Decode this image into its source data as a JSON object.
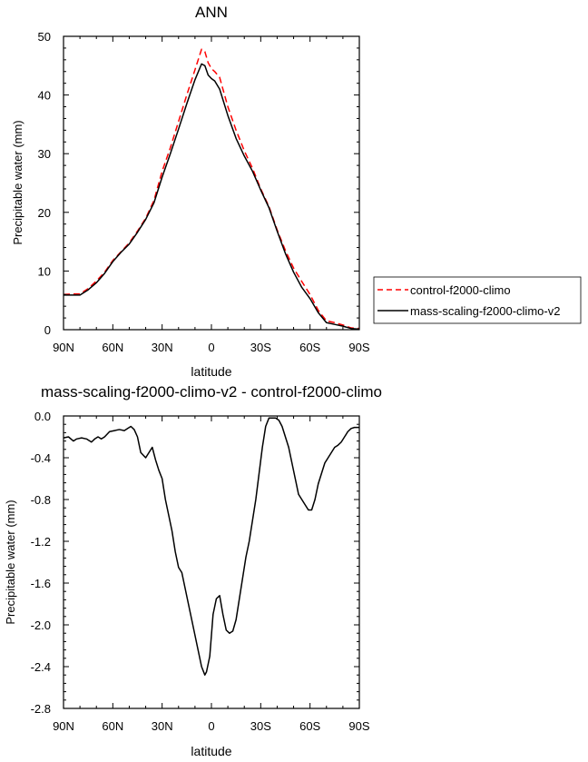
{
  "chart_data": [
    {
      "type": "line",
      "title": "ANN",
      "xlabel": "latitude",
      "ylabel": "Precipitable water (mm)",
      "xlim": [
        90,
        -90
      ],
      "ylim": [
        0,
        50
      ],
      "xticks": [
        90,
        60,
        30,
        0,
        -30,
        -60,
        -90
      ],
      "xtick_labels": [
        "90N",
        "60N",
        "30N",
        "0",
        "30S",
        "60S",
        "90S"
      ],
      "yticks": [
        0,
        10,
        20,
        30,
        40,
        50
      ],
      "ytick_labels": [
        "0",
        "10",
        "20",
        "30",
        "40",
        "50"
      ],
      "legend": {
        "placement": "outside-right"
      },
      "series": [
        {
          "name": "control-f2000-climo",
          "color": "#ff0000",
          "dash": "dashed",
          "x": [
            90,
            84,
            80,
            75,
            70,
            65,
            60,
            55,
            50,
            45,
            40,
            35,
            30,
            25,
            20,
            15,
            10,
            6,
            4,
            2,
            0,
            -2,
            -5,
            -10,
            -15,
            -20,
            -25,
            -30,
            -35,
            -40,
            -45,
            -50,
            -55,
            -60,
            -65,
            -70,
            -75,
            -80,
            -85,
            -90
          ],
          "y": [
            6.0,
            6.1,
            6.1,
            7.0,
            8.3,
            9.8,
            11.8,
            13.3,
            14.8,
            16.8,
            19.0,
            22.0,
            27.0,
            31.0,
            35.5,
            40.0,
            44.3,
            47.8,
            47.4,
            45.5,
            44.5,
            44.0,
            43.0,
            38.0,
            34.0,
            30.5,
            27.5,
            24.0,
            21.0,
            17.0,
            13.5,
            10.5,
            8.2,
            6.0,
            3.3,
            1.5,
            1.2,
            0.8,
            0.3,
            0.2
          ]
        },
        {
          "name": "mass-scaling-f2000-climo-v2",
          "color": "#000000",
          "dash": "solid",
          "x": [
            90,
            84,
            80,
            75,
            70,
            65,
            60,
            55,
            50,
            45,
            40,
            35,
            30,
            25,
            20,
            15,
            10,
            6,
            4,
            2,
            0,
            -2,
            -5,
            -10,
            -15,
            -20,
            -25,
            -30,
            -35,
            -40,
            -45,
            -50,
            -55,
            -60,
            -65,
            -70,
            -75,
            -80,
            -85,
            -90
          ],
          "y": [
            5.9,
            5.9,
            5.9,
            6.8,
            8.0,
            9.6,
            11.6,
            13.2,
            14.6,
            16.6,
            18.8,
            21.6,
            26.0,
            30.0,
            34.2,
            38.5,
            42.6,
            45.3,
            45.0,
            43.4,
            42.8,
            42.4,
            41.0,
            36.5,
            32.6,
            29.6,
            27.0,
            23.8,
            20.8,
            16.8,
            13.0,
            9.8,
            7.2,
            5.3,
            2.9,
            1.2,
            0.9,
            0.6,
            0.2,
            0.1
          ]
        }
      ]
    },
    {
      "type": "line",
      "title": "mass-scaling-f2000-climo-v2 - control-f2000-climo",
      "xlabel": "latitude",
      "ylabel": "Precipitable water (mm)",
      "xlim": [
        90,
        -90
      ],
      "ylim": [
        -2.8,
        0.0
      ],
      "xticks": [
        90,
        60,
        30,
        0,
        -30,
        -60,
        -90
      ],
      "xtick_labels": [
        "90N",
        "60N",
        "30N",
        "0",
        "30S",
        "60S",
        "90S"
      ],
      "yticks": [
        0.0,
        -0.4,
        -0.8,
        -1.2,
        -1.6,
        -2.0,
        -2.4,
        -2.8
      ],
      "ytick_labels": [
        "0.0",
        "-0.4",
        "-0.8",
        "-1.2",
        "-1.6",
        "-2.0",
        "-2.4",
        "-2.8"
      ],
      "series": [
        {
          "color": "#000000",
          "dash": "solid",
          "x": [
            90,
            87,
            84,
            82,
            79,
            76,
            73,
            71,
            69,
            67,
            65,
            62,
            59,
            56,
            53,
            51,
            49,
            47,
            45,
            43,
            40,
            38,
            36,
            34,
            32,
            30,
            28,
            26,
            24,
            22,
            20,
            18,
            16,
            14,
            12,
            10,
            8,
            6,
            4,
            3,
            1,
            0,
            -1,
            -3,
            -5,
            -7,
            -9,
            -11,
            -13,
            -15,
            -17,
            -19,
            -21,
            -23,
            -25,
            -27,
            -29,
            -31,
            -33,
            -35,
            -37,
            -39,
            -41,
            -43,
            -45,
            -47,
            -49,
            -51,
            -53,
            -55,
            -57,
            -59,
            -61,
            -63,
            -65,
            -67,
            -69,
            -71,
            -73,
            -75,
            -77,
            -79,
            -81,
            -83,
            -85,
            -87,
            -90
          ],
          "y": [
            -0.21,
            -0.2,
            -0.24,
            -0.22,
            -0.21,
            -0.22,
            -0.25,
            -0.22,
            -0.2,
            -0.22,
            -0.2,
            -0.15,
            -0.14,
            -0.13,
            -0.14,
            -0.12,
            -0.1,
            -0.13,
            -0.2,
            -0.35,
            -0.4,
            -0.35,
            -0.3,
            -0.42,
            -0.52,
            -0.6,
            -0.8,
            -0.95,
            -1.1,
            -1.3,
            -1.45,
            -1.5,
            -1.65,
            -1.8,
            -1.95,
            -2.1,
            -2.25,
            -2.4,
            -2.48,
            -2.45,
            -2.3,
            -2.1,
            -1.9,
            -1.75,
            -1.72,
            -1.9,
            -2.05,
            -2.08,
            -2.06,
            -1.95,
            -1.75,
            -1.55,
            -1.35,
            -1.2,
            -1.0,
            -0.8,
            -0.55,
            -0.3,
            -0.1,
            -0.02,
            -0.02,
            -0.02,
            -0.04,
            -0.1,
            -0.2,
            -0.3,
            -0.45,
            -0.6,
            -0.75,
            -0.8,
            -0.85,
            -0.9,
            -0.9,
            -0.8,
            -0.65,
            -0.55,
            -0.45,
            -0.4,
            -0.35,
            -0.3,
            -0.28,
            -0.25,
            -0.2,
            -0.15,
            -0.12,
            -0.11,
            -0.11
          ]
        }
      ]
    }
  ]
}
